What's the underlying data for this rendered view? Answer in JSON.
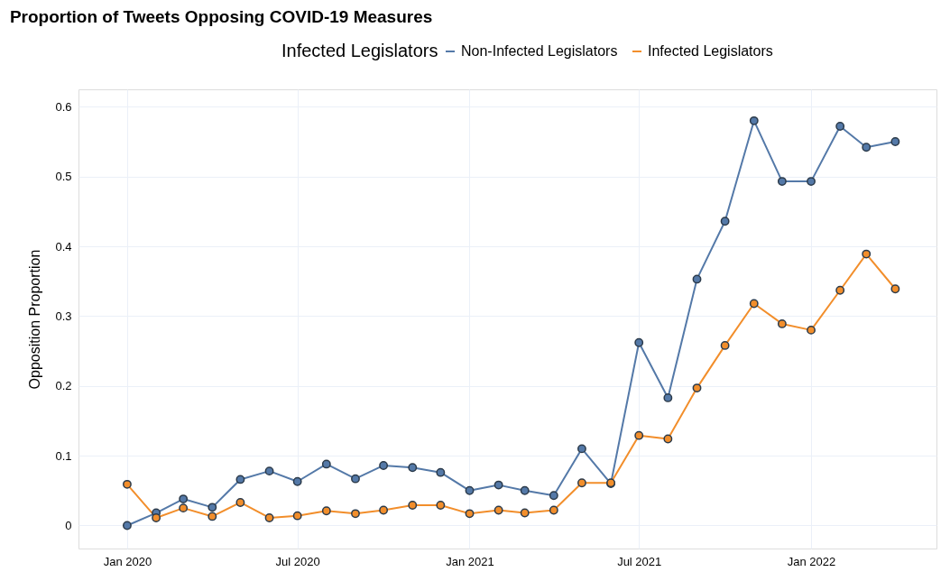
{
  "chart_data": {
    "type": "line",
    "title": "Proportion of Tweets Opposing COVID-19 Measures",
    "ylabel": "Opposition Proportion",
    "legend_title": "Infected Legislators",
    "legend": "top right",
    "grid": true,
    "marker": "circle",
    "line_style": "solid",
    "x": [
      "2020-01",
      "2020-02",
      "2020-03",
      "2020-04",
      "2020-05",
      "2020-06",
      "2020-07",
      "2020-08",
      "2020-09",
      "2020-10",
      "2020-11",
      "2020-12",
      "2021-01",
      "2021-02",
      "2021-03",
      "2021-04",
      "2021-05",
      "2021-06",
      "2021-07",
      "2021-08",
      "2021-09",
      "2021-10",
      "2021-11",
      "2021-12",
      "2022-01",
      "2022-02",
      "2022-03",
      "2022-04"
    ],
    "series": [
      {
        "name": "Non-Infected Legislators",
        "color": "#5479a8",
        "values": [
          0,
          0.018,
          0.038,
          0.026,
          0.066,
          0.078,
          0.063,
          0.088,
          0.067,
          0.086,
          0.083,
          0.076,
          0.05,
          0.058,
          0.05,
          0.043,
          0.11,
          0.06,
          0.262,
          0.183,
          0.353,
          0.436,
          0.58,
          0.493,
          0.493,
          0.572,
          0.542,
          0.55
        ]
      },
      {
        "name": "Infected Legislators",
        "color": "#f28e2b",
        "values": [
          0.059,
          0.011,
          0.025,
          0.013,
          0.033,
          0.011,
          0.014,
          0.021,
          0.017,
          0.022,
          0.029,
          0.029,
          0.017,
          0.022,
          0.018,
          0.022,
          0.061,
          0.061,
          0.129,
          0.124,
          0.197,
          0.258,
          0.318,
          0.289,
          0.28,
          0.337,
          0.389,
          0.339
        ]
      }
    ],
    "xlim": [
      "2019-11-10",
      "2022-05-15"
    ],
    "xticks": [
      {
        "value": "2020-01",
        "label": "Jan 2020"
      },
      {
        "value": "2020-07",
        "label": "Jul 2020"
      },
      {
        "value": "2021-01",
        "label": "Jan 2021"
      },
      {
        "value": "2021-07",
        "label": "Jul 2021"
      },
      {
        "value": "2022-01",
        "label": "Jan 2022"
      }
    ],
    "ylim": [
      -0.033,
      0.625
    ],
    "yticks": [
      0,
      0.1,
      0.2,
      0.3,
      0.4,
      0.5,
      0.6
    ]
  }
}
